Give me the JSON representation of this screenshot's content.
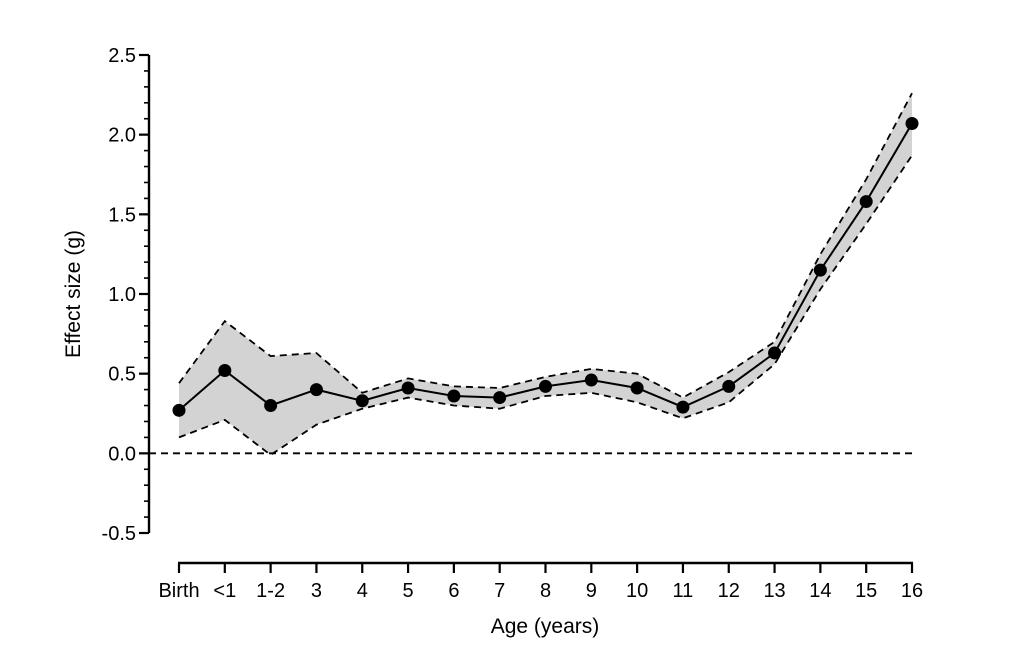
{
  "chart_data": {
    "type": "line",
    "title": "",
    "xlabel": "Age (years)",
    "ylabel": "Effect size (g)",
    "ylim": [
      -0.5,
      2.5
    ],
    "yticks": [
      {
        "value": -0.5,
        "label": "-0.5"
      },
      {
        "value": 0.0,
        "label": "0.0"
      },
      {
        "value": 0.5,
        "label": "0.5"
      },
      {
        "value": 1.0,
        "label": "1.0"
      },
      {
        "value": 1.5,
        "label": "1.5"
      },
      {
        "value": 2.0,
        "label": "2.0"
      },
      {
        "value": 2.5,
        "label": "2.5"
      }
    ],
    "categories": [
      "Birth",
      "<1",
      "1-2",
      "3",
      "4",
      "5",
      "6",
      "7",
      "8",
      "9",
      "10",
      "11",
      "12",
      "13",
      "14",
      "15",
      "16"
    ],
    "series": [
      {
        "values": [
          0.27,
          0.52,
          0.3,
          0.4,
          0.33,
          0.41,
          0.36,
          0.35,
          0.42,
          0.46,
          0.41,
          0.29,
          0.42,
          0.63,
          1.15,
          1.58,
          2.07
        ],
        "ci_upper": [
          0.44,
          0.83,
          0.61,
          0.63,
          0.38,
          0.47,
          0.42,
          0.41,
          0.48,
          0.53,
          0.5,
          0.35,
          0.51,
          0.7,
          1.25,
          1.72,
          2.26
        ],
        "ci_lower": [
          0.1,
          0.21,
          -0.01,
          0.18,
          0.28,
          0.35,
          0.3,
          0.28,
          0.36,
          0.38,
          0.32,
          0.22,
          0.32,
          0.56,
          1.03,
          1.44,
          1.87
        ]
      }
    ],
    "reference_line": 0.0,
    "colors": {
      "line": "#000000",
      "band": "#d3d3d3",
      "marker": "#000000"
    },
    "grid": false
  }
}
